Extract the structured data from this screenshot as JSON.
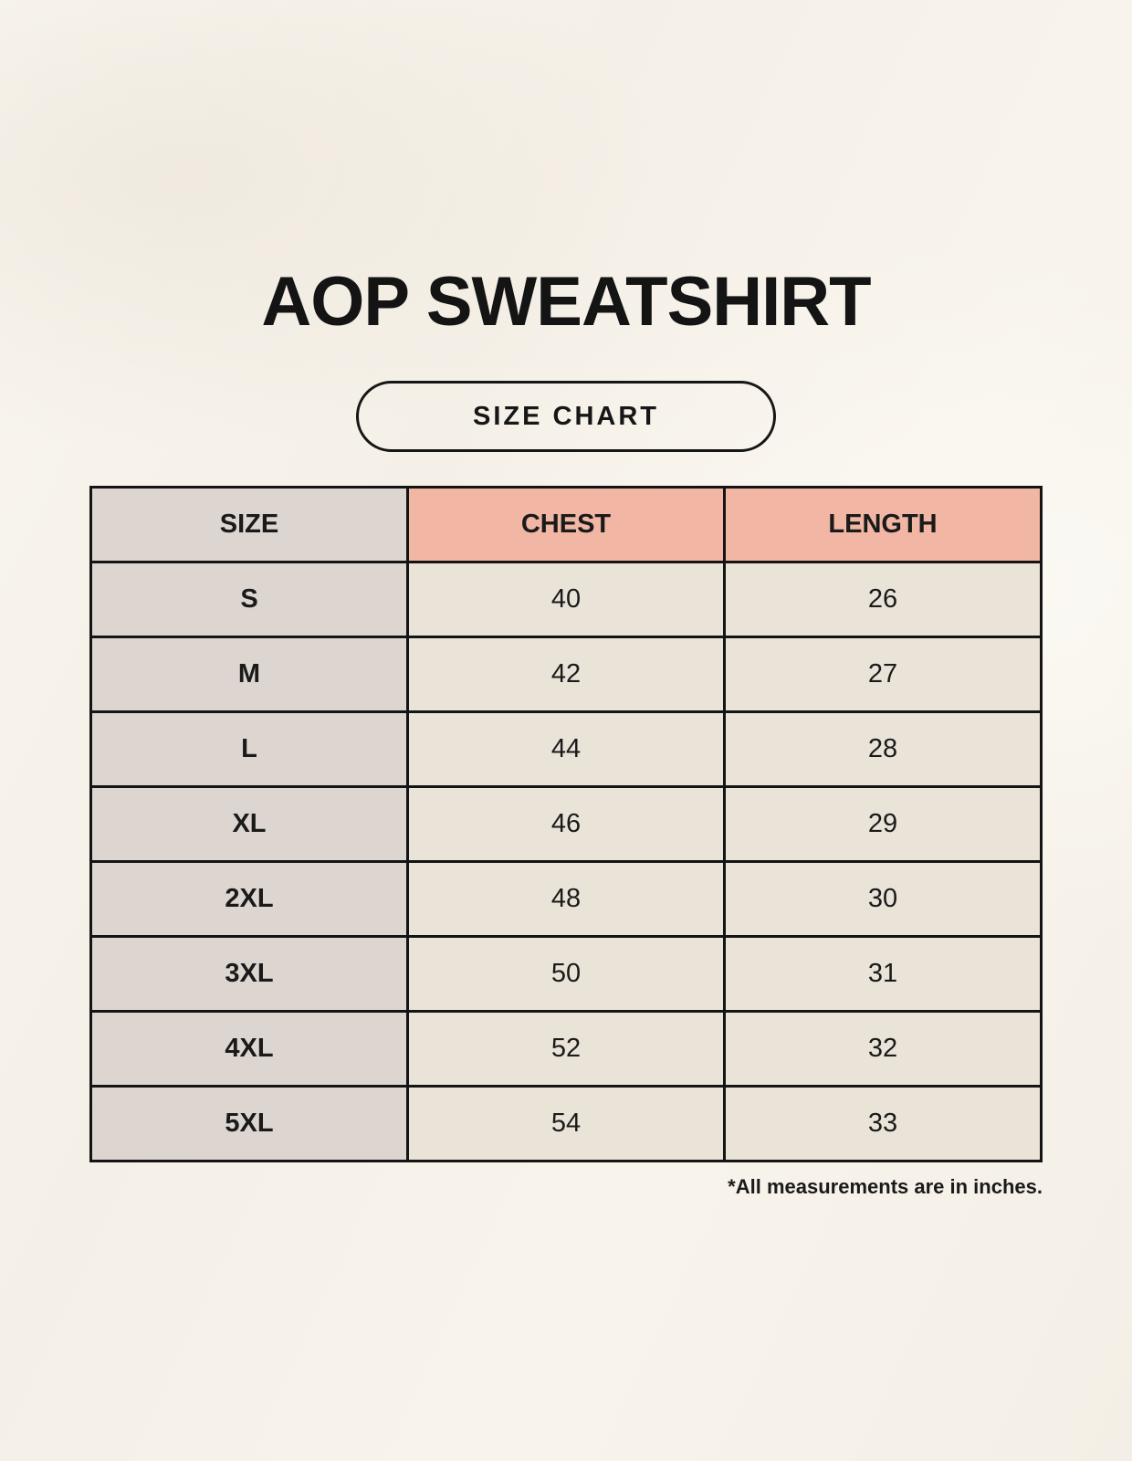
{
  "title": "AOP SWEATSHIRT",
  "badge": {
    "label": "SIZE CHART"
  },
  "table": {
    "headers": {
      "size": "SIZE",
      "chest": "CHEST",
      "length": "LENGTH"
    },
    "rows": [
      {
        "size": "S",
        "chest": "40",
        "length": "26"
      },
      {
        "size": "M",
        "chest": "42",
        "length": "27"
      },
      {
        "size": "L",
        "chest": "44",
        "length": "28"
      },
      {
        "size": "XL",
        "chest": "46",
        "length": "29"
      },
      {
        "size": "2XL",
        "chest": "48",
        "length": "30"
      },
      {
        "size": "3XL",
        "chest": "50",
        "length": "31"
      },
      {
        "size": "4XL",
        "chest": "52",
        "length": "32"
      },
      {
        "size": "5XL",
        "chest": "54",
        "length": "33"
      }
    ],
    "footnote": "*All measurements are in inches."
  },
  "colors": {
    "background": "#f7f3ec",
    "header_accent_pink": "#f1b6a4",
    "size_column_taupe": "#ddd6d0",
    "data_cell_beige": "#eae4d8",
    "border": "#141414",
    "text": "#1a1a1a"
  },
  "chart_data": {
    "type": "table",
    "title": "AOP SWEATSHIRT",
    "subtitle": "SIZE CHART",
    "columns": [
      "SIZE",
      "CHEST",
      "LENGTH"
    ],
    "rows": [
      [
        "S",
        40,
        26
      ],
      [
        "M",
        42,
        27
      ],
      [
        "L",
        44,
        28
      ],
      [
        "XL",
        46,
        29
      ],
      [
        "2XL",
        48,
        30
      ],
      [
        "3XL",
        50,
        31
      ],
      [
        "4XL",
        52,
        32
      ],
      [
        "5XL",
        54,
        33
      ]
    ],
    "units": "inches",
    "footnote": "*All measurements are in inches."
  }
}
